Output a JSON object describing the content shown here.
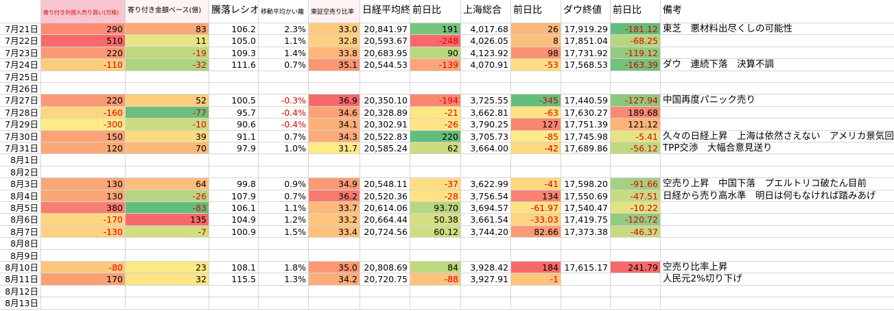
{
  "header": [
    "寄り付き外国人売り買い(万株)",
    "寄り付き金額ベース(億)",
    "騰落レシオ",
    "移動平均かい離",
    "東証空売り比率",
    "日経平均終値",
    "前日比",
    "上海総合",
    "前日比",
    "ダウ終値",
    "前日比",
    "備考"
  ],
  "rows": [
    {
      "date": "7月21日",
      "cells": [
        "290",
        "83",
        "106.2",
        "2.3%",
        "33.0",
        "20,841.97",
        "191",
        "4,017.68",
        "26",
        "17,919.29",
        "-181.12",
        "東芝　悪材料出尽くしの可能性"
      ]
    },
    {
      "date": "7月22日",
      "cells": [
        "510",
        "11",
        "105.0",
        "1.1%",
        "32.8",
        "20,593.67",
        "-248",
        "4,026.05",
        "8",
        "17,851.04",
        "-68.25",
        null
      ]
    },
    {
      "date": "7月23日",
      "cells": [
        "220",
        "-19",
        "109.3",
        "1.4%",
        "33.8",
        "20,683.95",
        "90",
        "4,123.92",
        "98",
        "17,731.92",
        "-119.12",
        null
      ]
    },
    {
      "date": "7月24日",
      "cells": [
        "-110",
        "-32",
        "111.6",
        "0.7%",
        "35.1",
        "20,544.53",
        "-139",
        "4,070.91",
        "-53",
        "17,568.53",
        "-163.39",
        "ダウ　連続下落　決算不調"
      ]
    },
    {
      "date": "7月25日"
    },
    {
      "date": "7月26日"
    },
    {
      "date": "7月27日",
      "cells": [
        "220",
        "52",
        "100.5",
        "-0.3%",
        "36.9",
        "20,350.10",
        "-194",
        "3,725.55",
        "-345",
        "17,440.59",
        "-127.94",
        "中国再度パニック売り"
      ]
    },
    {
      "date": "7月28日",
      "cells": [
        "-160",
        "-77",
        "95.7",
        "-0.4%",
        "34.6",
        "20,328.89",
        "-21",
        "3,662.81",
        "-63",
        "17,630.27",
        "189.68",
        null
      ]
    },
    {
      "date": "7月29日",
      "cells": [
        "-300",
        "-10",
        "90.6",
        "-0.4%",
        "34.1",
        "20,302.91",
        "-26",
        "3,790.25",
        "127",
        "17,751.39",
        "121.12",
        null
      ]
    },
    {
      "date": "7月30日",
      "cells": [
        "150",
        "39",
        "91.1",
        "0.7%",
        "34.3",
        "20,522.83",
        "220",
        "3,705.73",
        "-85",
        "17,745.98",
        "-5.41",
        "久々の日経上昇　上海は依然さえない　アメリカ景気回復("
      ]
    },
    {
      "date": "7月31日",
      "cells": [
        "120",
        "70",
        "97.9",
        "1.0%",
        "31.7",
        "20,585.24",
        "62",
        "3,664.00",
        "-42",
        "17,689.86",
        "-56.12",
        "TPP交渉　大幅合意見送り"
      ]
    },
    {
      "date": "8月1日"
    },
    {
      "date": "8月2日"
    },
    {
      "date": "8月3日",
      "cells": [
        "130",
        "64",
        "99.8",
        "0.9%",
        "34.9",
        "20,548.11",
        "-37",
        "3,622.99",
        "-41",
        "17,598.20",
        "-91.66",
        "空売り上昇　中国下落　プエルトリコ破たん目前"
      ]
    },
    {
      "date": "8月4日",
      "cells": [
        "130",
        "-26",
        "107.9",
        "0.7%",
        "36.2",
        "20,520.36",
        "-28",
        "3,756.54",
        "134",
        "17,550.69",
        "-47.51",
        "日経から売り高水準　明日は何もなければ踏みあげ"
      ]
    },
    {
      "date": "8月5日",
      "cells": [
        "380",
        "-83",
        "106.1",
        "1.1%",
        "33.7",
        "20,614.06",
        "93.70",
        "3,694.57",
        "-61.97",
        "17,540.47",
        "-10.22",
        null
      ]
    },
    {
      "date": "8月6日",
      "cells": [
        "-170",
        "135",
        "104.9",
        "1.2%",
        "33.2",
        "20,664.44",
        "50.38",
        "3,661.54",
        "-33.03",
        "17,419.75",
        "-120.72",
        null
      ]
    },
    {
      "date": "8月7日",
      "cells": [
        "-130",
        "-7",
        "100.9",
        "1.5%",
        "33.4",
        "20,724.56",
        "60.12",
        "3,744.20",
        "82.66",
        "17,373.38",
        "-46.37",
        null
      ]
    },
    {
      "date": "8月8日"
    },
    {
      "date": "8月9日"
    },
    {
      "date": "8月10日",
      "cells": [
        "-80",
        "23",
        "108.1",
        "1.8%",
        "35.0",
        "20,808.69",
        "84",
        "3,928.42",
        "184",
        "17,615.17",
        "241.79",
        "空売り比率上昇"
      ]
    },
    {
      "date": "8月11日",
      "cells": [
        "170",
        "32",
        "115.5",
        "1.3%",
        "34.2",
        "20,720.75",
        "-88",
        "3,927.91",
        "-1",
        null,
        null,
        "人民元2%切り下げ"
      ]
    },
    {
      "date": "8月12日"
    },
    {
      "date": "8月13日"
    }
  ]
}
